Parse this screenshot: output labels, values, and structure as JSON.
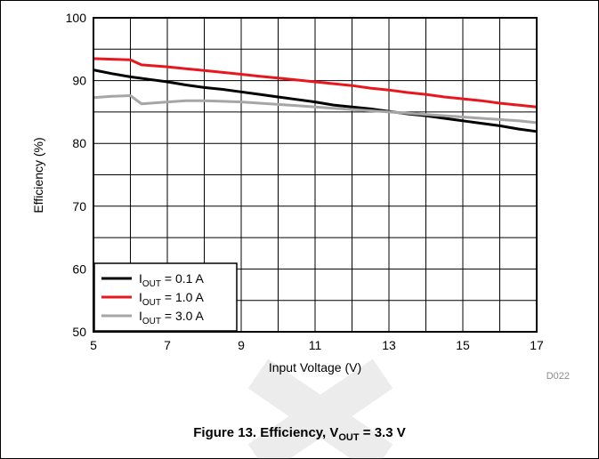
{
  "chart_data": {
    "type": "line",
    "title": "",
    "xlabel": "Input Voltage (V)",
    "ylabel": "Efficiency (%)",
    "xlim": [
      5,
      17
    ],
    "ylim": [
      50,
      100
    ],
    "xticks": [
      5,
      7,
      9,
      11,
      13,
      15,
      17
    ],
    "yticks": [
      50,
      60,
      70,
      80,
      90,
      100
    ],
    "grid": true,
    "legend_position": "bottom-left",
    "series": [
      {
        "name": "I_OUT = 0.1 A",
        "legend_prefix": "I",
        "legend_sub": "OUT",
        "legend_suffix": " = 0.1 A",
        "color": "#000000",
        "x": [
          5,
          5.5,
          6,
          6.5,
          7,
          7.5,
          8,
          8.5,
          9,
          9.5,
          10,
          10.5,
          11,
          11.5,
          12,
          12.5,
          13,
          13.5,
          14,
          14.5,
          15,
          15.5,
          16,
          16.5,
          17
        ],
        "y": [
          91.7,
          91.1,
          90.6,
          90.2,
          89.8,
          89.3,
          88.9,
          88.6,
          88.2,
          87.8,
          87.4,
          87.0,
          86.6,
          86.1,
          85.8,
          85.5,
          85.1,
          84.7,
          84.4,
          84.0,
          83.6,
          83.2,
          82.8,
          82.3,
          81.9
        ]
      },
      {
        "name": "I_OUT = 1.0 A",
        "legend_prefix": "I",
        "legend_sub": "OUT",
        "legend_suffix": " = 1.0 A",
        "color": "#e8171e",
        "x": [
          5,
          5.5,
          6,
          6.3,
          7,
          7.5,
          8,
          8.5,
          9,
          9.5,
          10,
          10.5,
          11,
          11.5,
          12,
          12.5,
          13,
          13.5,
          14,
          14.5,
          15,
          15.5,
          16,
          16.5,
          17
        ],
        "y": [
          93.5,
          93.4,
          93.3,
          92.5,
          92.2,
          91.9,
          91.6,
          91.3,
          91.0,
          90.7,
          90.4,
          90.1,
          89.8,
          89.5,
          89.2,
          88.8,
          88.5,
          88.1,
          87.8,
          87.4,
          87.1,
          86.8,
          86.4,
          86.1,
          85.8
        ]
      },
      {
        "name": "I_OUT = 3.0 A",
        "legend_prefix": "I",
        "legend_sub": "OUT",
        "legend_suffix": " = 3.0 A",
        "color": "#a6a6a6",
        "x": [
          5,
          5.5,
          6,
          6.3,
          7,
          7.5,
          8,
          8.5,
          9,
          9.5,
          10,
          10.5,
          11,
          11.5,
          12,
          12.5,
          13,
          13.5,
          14,
          14.5,
          15,
          15.5,
          16,
          16.5,
          17
        ],
        "y": [
          87.3,
          87.5,
          87.6,
          86.3,
          86.6,
          86.8,
          86.8,
          86.7,
          86.6,
          86.4,
          86.2,
          86.0,
          85.8,
          85.6,
          85.4,
          85.2,
          85.0,
          84.8,
          84.6,
          84.4,
          84.2,
          84.0,
          83.8,
          83.6,
          83.3
        ]
      }
    ],
    "watermark_text": "D022"
  },
  "caption": {
    "prefix": "Figure 13. Efficiency, V",
    "sub": "OUT",
    "suffix": " = 3.3 V"
  }
}
